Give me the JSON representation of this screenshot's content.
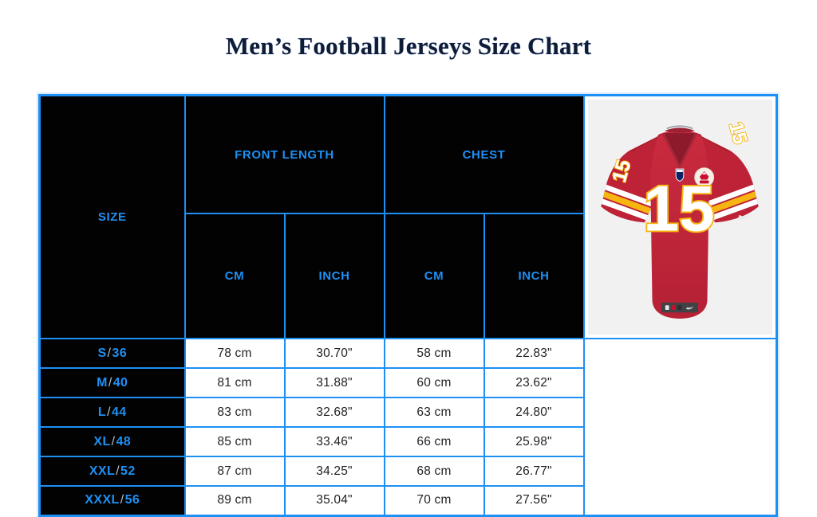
{
  "title": "Men’s Football Jerseys Size Chart",
  "colors": {
    "accent_blue": "#1e90f5",
    "header_bg": "#020202",
    "jersey_red": "#c22438",
    "jersey_gold": "#f7b512",
    "photo_bg": "#f1f1f2"
  },
  "table": {
    "size_header": "SIZE",
    "group_headers": [
      "FRONT LENGTH",
      "CHEST"
    ],
    "unit_headers": [
      "CM",
      "INCH",
      "CM",
      "INCH"
    ],
    "rows": [
      {
        "size": "S",
        "fit": "36",
        "front_cm": "78 cm",
        "front_inch": "30.70\"",
        "chest_cm": "58 cm",
        "chest_inch": "22.83\""
      },
      {
        "size": "M",
        "fit": "40",
        "front_cm": "81 cm",
        "front_inch": "31.88\"",
        "chest_cm": "60 cm",
        "chest_inch": "23.62\""
      },
      {
        "size": "L",
        "fit": "44",
        "front_cm": "83 cm",
        "front_inch": "32.68\"",
        "chest_cm": "63 cm",
        "chest_inch": "24.80\""
      },
      {
        "size": "XL",
        "fit": "48",
        "front_cm": "85 cm",
        "front_inch": "33.46\"",
        "chest_cm": "66 cm",
        "chest_inch": "25.98\""
      },
      {
        "size": "XXL",
        "fit": "52",
        "front_cm": "87 cm",
        "front_inch": "34.25\"",
        "chest_cm": "68 cm",
        "chest_inch": "26.77\""
      },
      {
        "size": "XXXL",
        "fit": "56",
        "front_cm": "89 cm",
        "front_inch": "35.04\"",
        "chest_cm": "70 cm",
        "chest_inch": "27.56\""
      }
    ]
  },
  "jersey": {
    "number": "15",
    "description": "red football game jersey with white number 15, gold trim, sleeve stripes, NFL shield and team patch"
  }
}
